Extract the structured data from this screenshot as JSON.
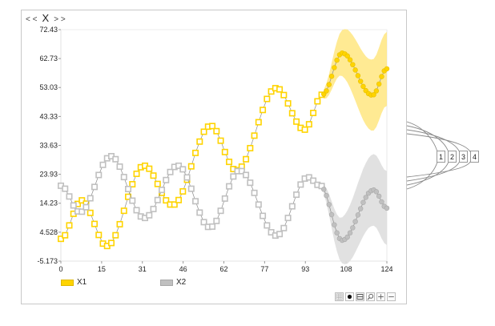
{
  "window": {
    "nav_prev": "< <",
    "title": "X",
    "nav_next": "> >"
  },
  "legend": [
    {
      "label": "X1",
      "color": "#ffd400",
      "border": "#e0b800"
    },
    {
      "label": "X2",
      "color": "#c0c0c0",
      "border": "#a8a8a8"
    }
  ],
  "toolbar": [
    {
      "name": "grid-toggle-button",
      "icon": "grid-icon"
    },
    {
      "name": "marker-toggle-button",
      "icon": "dot-icon"
    },
    {
      "name": "split-view-button",
      "icon": "split-icon"
    },
    {
      "name": "zoom-search-button",
      "icon": "magnifier-icon"
    },
    {
      "name": "zoom-in-button",
      "icon": "plus-icon"
    },
    {
      "name": "zoom-out-button",
      "icon": "minus-icon"
    }
  ],
  "side_tags": [
    "1",
    "2",
    "3",
    "4"
  ],
  "chart_data": {
    "type": "line",
    "title": "X",
    "xlabel": "",
    "ylabel": "",
    "xlim": [
      0,
      124
    ],
    "ylim": [
      -5.173,
      72.43
    ],
    "x_ticks": [
      "0",
      "15",
      "31",
      "46",
      "62",
      "77",
      "93",
      "108",
      "124"
    ],
    "x_tick_values": [
      0,
      15.5,
      31,
      46.5,
      62,
      77.5,
      93,
      108.5,
      124
    ],
    "y_ticks": [
      "-5.173",
      "4.528",
      "14.23",
      "23.93",
      "33.63",
      "43.33",
      "53.03",
      "62.73",
      "72.43"
    ],
    "y_tick_values": [
      -5.173,
      4.528,
      14.23,
      23.93,
      33.63,
      43.33,
      53.03,
      62.73,
      72.43
    ],
    "grid": false,
    "legend_position": "bottom",
    "x": [
      0,
      1.6,
      3.2,
      4.8,
      6.4,
      8,
      9.6,
      11.2,
      12.8,
      14.4,
      16,
      17.6,
      19.2,
      20.8,
      22.4,
      24,
      25.6,
      27.2,
      28.8,
      30.4,
      32,
      33.6,
      35.2,
      36.8,
      38.4,
      40,
      41.6,
      43.2,
      44.8,
      46.4,
      48,
      49.6,
      51.2,
      52.8,
      54.4,
      56,
      57.6,
      59.2,
      60.8,
      62.4,
      64,
      65.6,
      67.2,
      68.8,
      70.4,
      72,
      73.6,
      75.2,
      76.8,
      78.4,
      80,
      81.6,
      83.2,
      84.8,
      86.4,
      88,
      89.6,
      91.2,
      92.8,
      94.4,
      96,
      97.6,
      99.2
    ],
    "forecast_x": [
      100,
      101,
      102,
      103,
      104,
      105,
      106,
      107,
      108,
      109,
      110,
      111,
      112,
      113,
      114,
      115,
      116,
      117,
      118,
      119,
      120,
      121,
      122,
      123,
      124
    ],
    "series": [
      {
        "name": "X1",
        "color": "#ffd400",
        "band_color": "#ffe680",
        "values": [
          2.3,
          3.5,
          6.8,
          10.7,
          14.0,
          15.2,
          14.1,
          11.0,
          7.3,
          3.6,
          0.7,
          -0.1,
          0.9,
          3.5,
          7.2,
          11.7,
          16.4,
          20.6,
          24.1,
          26.3,
          26.8,
          25.8,
          23.5,
          20.7,
          17.7,
          15.2,
          13.8,
          13.8,
          15.3,
          18.2,
          22.1,
          26.6,
          31.1,
          34.9,
          38.2,
          39.9,
          40.1,
          38.4,
          35.2,
          31.4,
          28.1,
          25.7,
          25.3,
          26.5,
          29.0,
          32.7,
          36.9,
          41.4,
          45.5,
          49.2,
          51.7,
          52.8,
          52.4,
          50.5,
          47.7,
          44.4,
          41.6,
          39.5,
          38.9,
          40.7,
          44.5,
          48.4,
          50.6
        ],
        "forecast": [
          50.8,
          51.9,
          54.0,
          56.8,
          59.7,
          62.2,
          64.0,
          64.6,
          64.3,
          63.6,
          62.3,
          60.7,
          58.9,
          57.0,
          55.1,
          53.4,
          52.0,
          51.0,
          50.5,
          50.6,
          51.9,
          54.2,
          56.7,
          58.6,
          59.3
        ]
      },
      {
        "name": "X2",
        "color": "#c0c0c0",
        "band_color": "#dedede",
        "values": [
          20.1,
          19.1,
          16.5,
          13.5,
          11.5,
          11.4,
          12.9,
          15.9,
          19.7,
          23.7,
          27.1,
          29.3,
          30.0,
          29.0,
          26.5,
          23.0,
          19.0,
          15.1,
          11.9,
          9.8,
          9.3,
          10.2,
          12.3,
          15.3,
          18.7,
          22.0,
          24.7,
          26.4,
          26.8,
          25.6,
          22.9,
          19.1,
          14.9,
          11.1,
          7.9,
          6.3,
          6.4,
          8.3,
          11.7,
          15.8,
          19.9,
          23.2,
          25.0,
          25.0,
          23.7,
          21.1,
          17.7,
          13.8,
          10.0,
          6.8,
          4.5,
          3.4,
          3.9,
          5.9,
          9.3,
          13.2,
          17.1,
          20.5,
          22.5,
          22.9,
          21.8,
          20.4,
          20.0
        ],
        "forecast": [
          18.9,
          16.8,
          13.8,
          10.4,
          7.0,
          4.3,
          2.4,
          1.8,
          2.1,
          2.9,
          4.3,
          6.0,
          8.1,
          10.3,
          12.4,
          14.5,
          16.2,
          17.6,
          18.4,
          18.7,
          18.1,
          16.6,
          14.7,
          13.2,
          12.6
        ]
      }
    ],
    "forecast_band_halfwidth": [
      1.5,
      2.5,
      3.5,
      4.5,
      5.4,
      6.2,
      7.0,
      7.7,
      8.3,
      8.9,
      9.4,
      9.9,
      10.3,
      10.7,
      11.0,
      11.3,
      11.5,
      11.7,
      11.9,
      12.0,
      12.1,
      12.2,
      12.3,
      12.3,
      12.4
    ]
  }
}
